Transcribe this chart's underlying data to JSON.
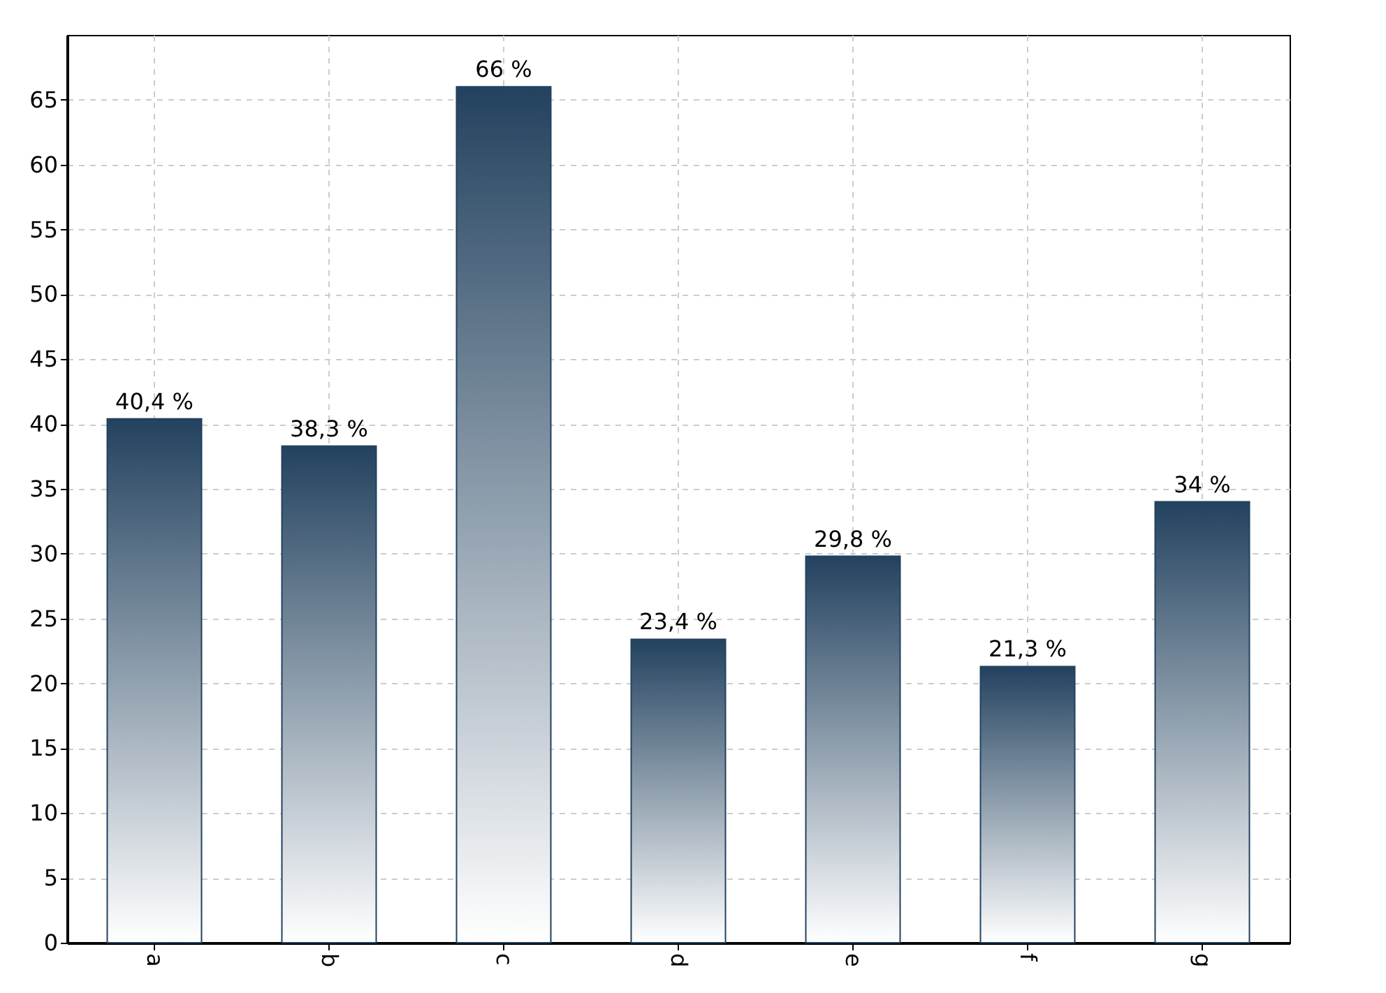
{
  "chart_data": {
    "type": "bar",
    "categories": [
      "a",
      "b",
      "c",
      "d",
      "e",
      "f",
      "g"
    ],
    "values": [
      40.4,
      38.3,
      66,
      23.4,
      29.8,
      21.3,
      34
    ],
    "value_labels": [
      "40,4 %",
      "38,3 %",
      "66 %",
      "23,4 %",
      "29,8 %",
      "21,3 %",
      "34 %"
    ],
    "color": "#23425f",
    "ylim": [
      0,
      70
    ],
    "yticks": [
      0,
      5,
      10,
      15,
      20,
      25,
      30,
      35,
      40,
      45,
      50,
      55,
      60,
      65
    ],
    "grid": true
  }
}
